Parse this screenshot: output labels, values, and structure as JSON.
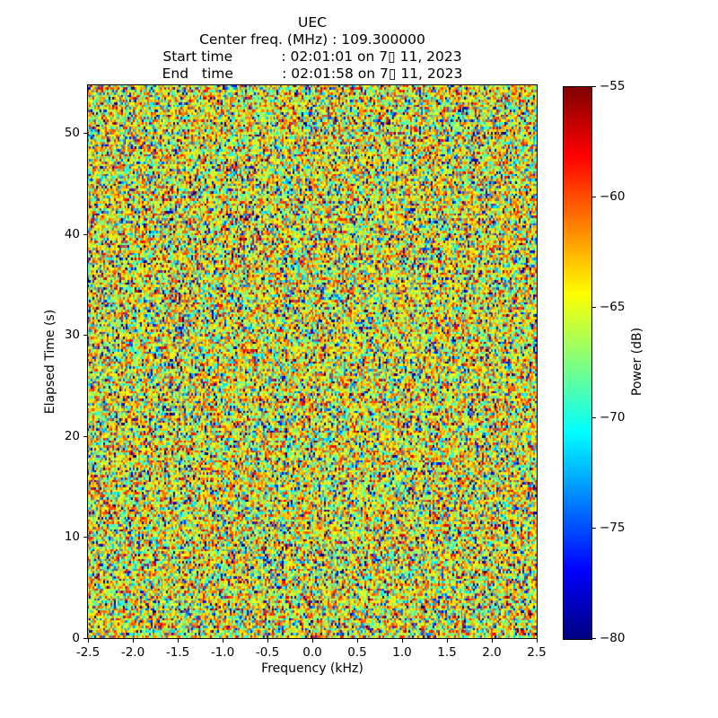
{
  "figure": {
    "title_lines": [
      "UEC",
      "Center freq. (MHz) : 109.300000",
      "Start time           : 02:01:01 on 7▯ 11, 2023",
      "End   time           : 02:01:58 on 7▯ 11, 2023"
    ]
  },
  "chart_data": {
    "type": "heatmap",
    "subtype": "spectrogram-waterfall",
    "title": "UEC",
    "annotations": {
      "center_freq_label": "Center freq. (MHz)",
      "center_freq_value": "109.300000",
      "start_time": "02:01:01 on 7▯ 11, 2023",
      "end_time": "02:01:58 on 7▯ 11, 2023"
    },
    "xlabel": "Frequency (kHz)",
    "ylabel": "Elapsed Time (s)",
    "xlim": [
      -2.5,
      2.5
    ],
    "ylim": [
      0,
      54.7
    ],
    "grid": false,
    "xticks": {
      "values": [
        -2.5,
        -2.0,
        -1.5,
        -1.0,
        -0.5,
        0.0,
        0.5,
        1.0,
        1.5,
        2.0,
        2.5
      ],
      "labels": [
        "-2.5",
        "-2.0",
        "-1.5",
        "-1.0",
        "-0.5",
        "0.0",
        "0.5",
        "1.0",
        "1.5",
        "2.0",
        "2.5"
      ]
    },
    "yticks": {
      "values": [
        0,
        10,
        20,
        30,
        40,
        50
      ],
      "labels": [
        "0",
        "10",
        "20",
        "30",
        "40",
        "50"
      ]
    },
    "colorbar": {
      "label": "Power (dB)",
      "vmin": -80,
      "vmax": -55,
      "ticks": {
        "values": [
          -55,
          -60,
          -65,
          -70,
          -75,
          -80
        ],
        "labels": [
          "−55",
          "−60",
          "−65",
          "−70",
          "−75",
          "−80"
        ]
      },
      "colormap": "jet",
      "stops": [
        [
          0.0,
          "#000080"
        ],
        [
          0.125,
          "#0000ff"
        ],
        [
          0.375,
          "#00ffff"
        ],
        [
          0.625,
          "#ffff00"
        ],
        [
          0.875,
          "#ff0000"
        ],
        [
          1.0,
          "#800000"
        ]
      ]
    },
    "data_description": "Uniform broadband random noise across all frequencies and times; per-cell power mostly between -76 and -58 dB (cyan/green/yellow dominant, occasional dark blue and rare red specks); no visible carrier or signal structure",
    "noise": {
      "seed": 20230711,
      "cols": 256,
      "rows": 224,
      "offset_db": -63.5,
      "clip": [
        -80,
        -55
      ]
    }
  }
}
